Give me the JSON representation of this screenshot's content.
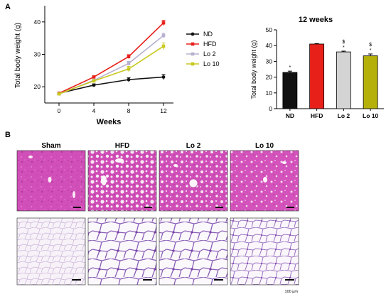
{
  "panels": {
    "a_label": "A",
    "b_label": "B"
  },
  "colors": {
    "ND": "#111111",
    "HFD": "#e8201a",
    "Lo 2": "#b8b0cf",
    "Lo 10": "#c8c81e",
    "bar_Lo 2": "#d4d4d4",
    "bar_Lo 10": "#b5b00a"
  },
  "chart_data": [
    {
      "type": "line",
      "title": "",
      "xlabel": "Weeks",
      "ylabel": "Total body weight (g)",
      "x": [
        0,
        4,
        8,
        12
      ],
      "ylim": [
        15,
        45
      ],
      "yticks": [
        20,
        30,
        40
      ],
      "legend_placement": "right",
      "series": [
        {
          "name": "ND",
          "values": [
            18.0,
            20.5,
            22.2,
            23.0
          ],
          "errors": [
            0.3,
            0.4,
            0.6,
            0.8
          ]
        },
        {
          "name": "HFD",
          "values": [
            18.0,
            23.0,
            29.3,
            39.7
          ],
          "errors": [
            0.3,
            0.4,
            0.6,
            0.8
          ]
        },
        {
          "name": "Lo 2",
          "values": [
            17.8,
            22.0,
            27.2,
            35.8
          ],
          "errors": [
            0.3,
            0.4,
            0.6,
            0.7
          ]
        },
        {
          "name": "Lo 10",
          "values": [
            17.8,
            21.8,
            25.5,
            32.5
          ],
          "errors": [
            0.3,
            0.4,
            0.8,
            1.0
          ]
        }
      ]
    },
    {
      "type": "bar",
      "title": "12 weeks",
      "xlabel": "",
      "ylabel": "Total body weight (g)",
      "categories": [
        "ND",
        "HFD",
        "Lo 2",
        "Lo 10"
      ],
      "values": [
        23.0,
        41.0,
        36.0,
        33.5
      ],
      "errors": [
        0.8,
        0.3,
        0.5,
        1.2
      ],
      "ylim": [
        0,
        50
      ],
      "yticks": [
        0,
        10,
        20,
        30,
        40,
        50
      ],
      "annotations": [
        {
          "category": "ND",
          "text": "*"
        },
        {
          "category": "Lo 2",
          "text": "$ *"
        },
        {
          "category": "Lo 10",
          "text": "$ *"
        }
      ]
    }
  ],
  "histology": {
    "columns": [
      "Sham",
      "HFD",
      "Lo 2",
      "Lo 10"
    ],
    "scale_label": "100 μm"
  }
}
